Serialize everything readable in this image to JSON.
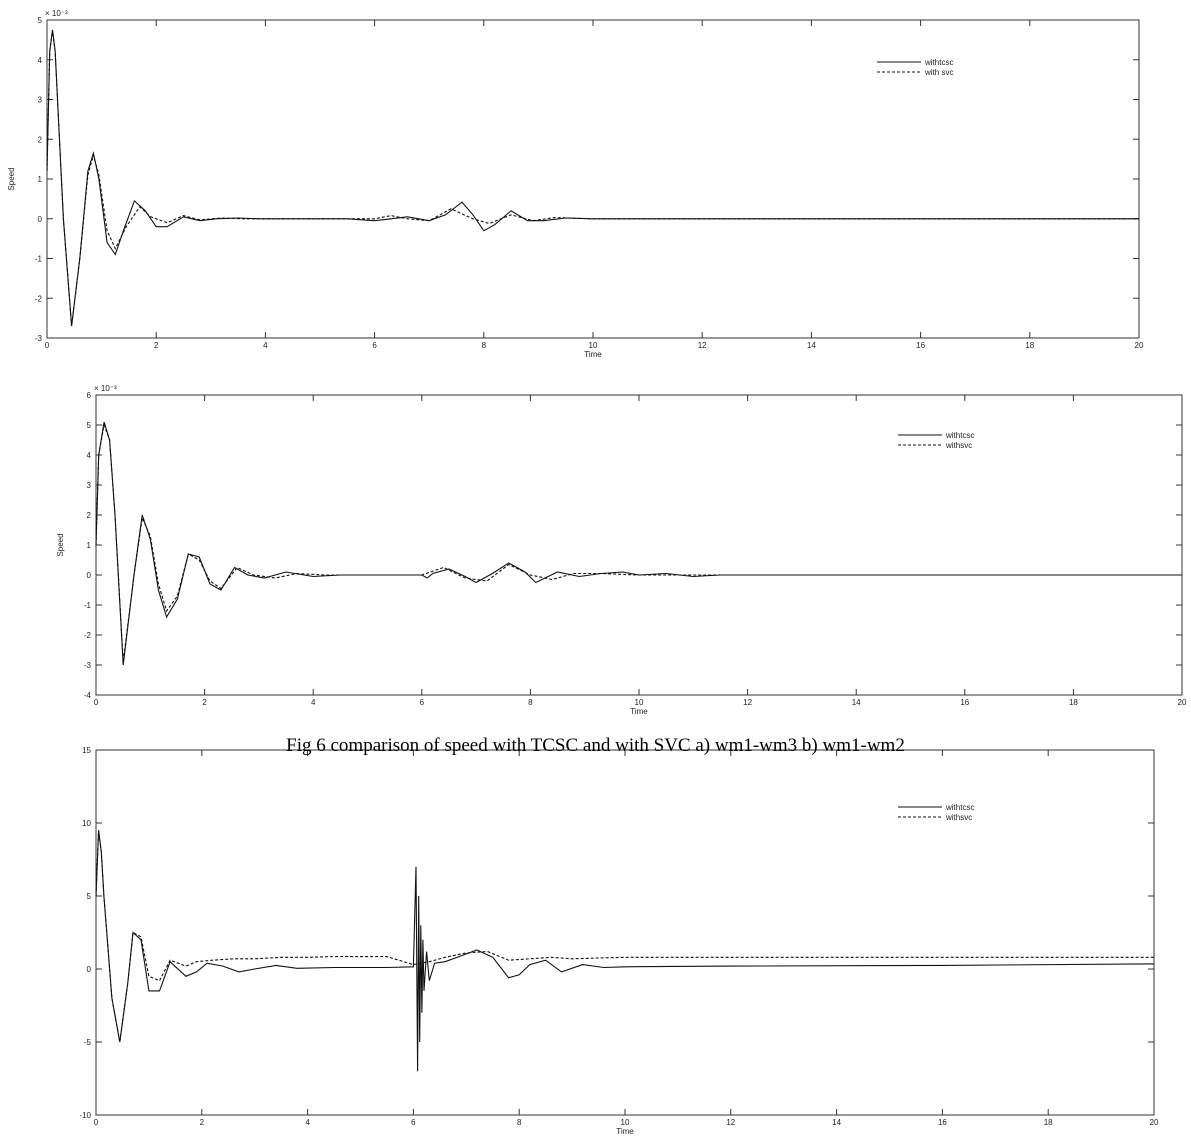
{
  "caption": "Fig 6 comparison of speed with TCSC and with SVC a) wm1-wm3 b) wm1-wm2",
  "chart_data": [
    {
      "type": "line",
      "xlabel": "Time",
      "ylabel": "Speed",
      "xlim": [
        0,
        20
      ],
      "ylim": [
        -3,
        5
      ],
      "xticks": [
        0,
        2,
        4,
        6,
        8,
        10,
        12,
        14,
        16,
        18,
        20
      ],
      "yticks": [
        -3,
        -2,
        -1,
        0,
        1,
        2,
        3,
        4,
        5
      ],
      "exponent_label": "× 10⁻³",
      "legend_position": "top-right",
      "series": [
        {
          "name": "withtcsc",
          "style": "solid",
          "x": [
            0,
            0.05,
            0.1,
            0.15,
            0.2,
            0.3,
            0.45,
            0.6,
            0.75,
            0.85,
            0.95,
            1.1,
            1.25,
            1.4,
            1.6,
            1.8,
            2.0,
            2.2,
            2.5,
            2.8,
            3.1,
            3.5,
            3.9,
            4.5,
            5.5,
            6.0,
            6.3,
            6.6,
            7.0,
            7.3,
            7.6,
            7.8,
            8.0,
            8.2,
            8.5,
            8.8,
            9.1,
            9.5,
            10.0,
            11.0,
            12.0,
            13.0,
            14.0,
            20.0
          ],
          "y": [
            1.2,
            4.2,
            4.75,
            4.2,
            2.8,
            0.0,
            -2.7,
            -1.0,
            1.2,
            1.65,
            1.0,
            -0.6,
            -0.9,
            -0.3,
            0.45,
            0.2,
            -0.2,
            -0.2,
            0.05,
            -0.05,
            0.0,
            0.02,
            0.0,
            0.0,
            0.0,
            -0.05,
            0.0,
            0.05,
            -0.05,
            0.1,
            0.42,
            0.1,
            -0.3,
            -0.15,
            0.2,
            -0.05,
            -0.05,
            0.02,
            0.0,
            0.0,
            0.0,
            0.0,
            0.0,
            0.0
          ]
        },
        {
          "name": "with svc",
          "style": "dashed",
          "x": [
            0,
            0.05,
            0.1,
            0.15,
            0.2,
            0.3,
            0.45,
            0.6,
            0.75,
            0.85,
            0.95,
            1.1,
            1.25,
            1.45,
            1.7,
            1.9,
            2.2,
            2.5,
            2.8,
            3.2,
            3.6,
            4.0,
            5.0,
            6.0,
            6.3,
            6.6,
            7.0,
            7.4,
            7.8,
            8.1,
            8.5,
            8.9,
            9.3,
            10.0,
            11.0,
            13.0,
            20.0
          ],
          "y": [
            1.2,
            4.2,
            4.75,
            4.2,
            2.8,
            0.0,
            -2.7,
            -1.0,
            1.1,
            1.6,
            1.1,
            -0.3,
            -0.75,
            -0.2,
            0.3,
            0.05,
            -0.1,
            0.08,
            -0.03,
            0.02,
            0.0,
            0.0,
            0.0,
            0.0,
            0.08,
            0.0,
            -0.05,
            0.25,
            0.0,
            -0.12,
            0.1,
            -0.05,
            0.03,
            0.0,
            0.0,
            0.0,
            0.0
          ]
        }
      ]
    },
    {
      "type": "line",
      "xlabel": "Time",
      "ylabel": "Speed",
      "xlim": [
        0,
        20
      ],
      "ylim": [
        -4,
        6
      ],
      "xticks": [
        0,
        2,
        4,
        6,
        8,
        10,
        12,
        14,
        16,
        18,
        20
      ],
      "yticks": [
        -4,
        -3,
        -2,
        -1,
        0,
        1,
        2,
        3,
        4,
        5,
        6
      ],
      "exponent_label": "× 10⁻³",
      "legend_position": "top-right",
      "series": [
        {
          "name": "withtcsc",
          "style": "solid",
          "x": [
            0,
            0.05,
            0.15,
            0.25,
            0.35,
            0.5,
            0.7,
            0.85,
            1.0,
            1.15,
            1.3,
            1.5,
            1.7,
            1.9,
            2.1,
            2.3,
            2.55,
            2.8,
            3.1,
            3.5,
            4.0,
            4.5,
            5.0,
            6.0,
            6.1,
            6.2,
            6.5,
            6.8,
            7.0,
            7.3,
            7.6,
            7.9,
            8.1,
            8.5,
            8.9,
            9.3,
            9.7,
            10.0,
            10.5,
            11.0,
            11.5,
            12.0,
            20.0
          ],
          "y": [
            1.0,
            4.0,
            5.1,
            4.5,
            2.0,
            -3.0,
            0.0,
            2.0,
            1.2,
            -0.5,
            -1.4,
            -0.8,
            0.7,
            0.6,
            -0.3,
            -0.5,
            0.25,
            0.0,
            -0.1,
            0.1,
            -0.05,
            0.0,
            0.0,
            0.0,
            -0.1,
            0.05,
            0.2,
            -0.05,
            -0.25,
            0.05,
            0.4,
            0.1,
            -0.25,
            0.1,
            -0.05,
            0.05,
            0.1,
            0.0,
            0.05,
            -0.05,
            0.0,
            0.0,
            0.0
          ]
        },
        {
          "name": "withsvc",
          "style": "dashed",
          "x": [
            0,
            0.05,
            0.15,
            0.25,
            0.35,
            0.5,
            0.7,
            0.85,
            1.0,
            1.15,
            1.3,
            1.5,
            1.7,
            1.9,
            2.1,
            2.3,
            2.6,
            2.9,
            3.3,
            3.7,
            4.2,
            5.0,
            6.0,
            6.4,
            6.8,
            7.2,
            7.6,
            8.0,
            8.4,
            8.8,
            9.3,
            10.0,
            12.0,
            20.0
          ],
          "y": [
            1.0,
            4.0,
            5.0,
            4.5,
            2.0,
            -2.9,
            0.0,
            1.9,
            1.3,
            -0.3,
            -1.2,
            -0.7,
            0.7,
            0.5,
            -0.2,
            -0.45,
            0.25,
            0.0,
            -0.1,
            0.05,
            0.0,
            0.0,
            0.0,
            0.25,
            -0.1,
            -0.2,
            0.35,
            0.0,
            -0.15,
            0.05,
            0.05,
            0.0,
            0.0,
            0.0
          ]
        }
      ]
    },
    {
      "type": "line",
      "xlabel": "Time",
      "ylabel": "",
      "xlim": [
        0,
        20
      ],
      "ylim": [
        -10,
        15
      ],
      "xticks": [
        0,
        2,
        4,
        6,
        8,
        10,
        12,
        14,
        16,
        18,
        20
      ],
      "yticks": [
        -10,
        -5,
        0,
        5,
        10,
        15
      ],
      "legend_position": "top-right",
      "series": [
        {
          "name": "withtcsc",
          "style": "solid",
          "x": [
            0,
            0.05,
            0.1,
            0.15,
            0.3,
            0.45,
            0.6,
            0.7,
            0.85,
            1.0,
            1.2,
            1.4,
            1.7,
            1.9,
            2.1,
            2.4,
            2.7,
            3.0,
            3.4,
            3.8,
            4.5,
            5.5,
            6.0,
            6.05,
            6.08,
            6.1,
            6.12,
            6.14,
            6.16,
            6.18,
            6.2,
            6.25,
            6.3,
            6.4,
            6.6,
            6.9,
            7.2,
            7.5,
            7.8,
            8.0,
            8.2,
            8.5,
            8.8,
            9.2,
            9.6,
            10.0,
            12.0,
            16.0,
            20.0
          ],
          "y": [
            5.0,
            9.5,
            8.0,
            5.0,
            -2.0,
            -5.0,
            -1.0,
            2.5,
            2.0,
            -1.5,
            -1.5,
            0.5,
            -0.5,
            -0.2,
            0.4,
            0.2,
            -0.2,
            0.0,
            0.25,
            0.05,
            0.1,
            0.1,
            0.15,
            7.0,
            -7.0,
            5.0,
            -5.0,
            3.0,
            -3.0,
            2.0,
            -1.5,
            1.2,
            -0.8,
            0.4,
            0.5,
            0.9,
            1.3,
            0.8,
            -0.6,
            -0.4,
            0.3,
            0.6,
            -0.2,
            0.3,
            0.1,
            0.15,
            0.2,
            0.25,
            0.35
          ]
        },
        {
          "name": "withsvc",
          "style": "dashed",
          "x": [
            0,
            0.05,
            0.1,
            0.15,
            0.3,
            0.45,
            0.6,
            0.7,
            0.85,
            1.0,
            1.2,
            1.4,
            1.7,
            1.9,
            2.2,
            2.6,
            3.0,
            3.5,
            4.0,
            4.5,
            5.0,
            5.5,
            6.0,
            6.3,
            6.6,
            7.0,
            7.4,
            7.8,
            8.2,
            8.6,
            9.0,
            9.5,
            10.0,
            11.0,
            14.0,
            20.0
          ],
          "y": [
            5.0,
            9.5,
            8.0,
            5.0,
            -2.0,
            -5.0,
            -1.0,
            2.5,
            2.2,
            -0.5,
            -0.8,
            0.6,
            0.2,
            0.5,
            0.6,
            0.7,
            0.7,
            0.8,
            0.8,
            0.85,
            0.85,
            0.85,
            0.3,
            0.5,
            0.8,
            1.1,
            1.2,
            0.6,
            0.7,
            0.8,
            0.7,
            0.75,
            0.8,
            0.8,
            0.8,
            0.8
          ]
        }
      ]
    }
  ]
}
